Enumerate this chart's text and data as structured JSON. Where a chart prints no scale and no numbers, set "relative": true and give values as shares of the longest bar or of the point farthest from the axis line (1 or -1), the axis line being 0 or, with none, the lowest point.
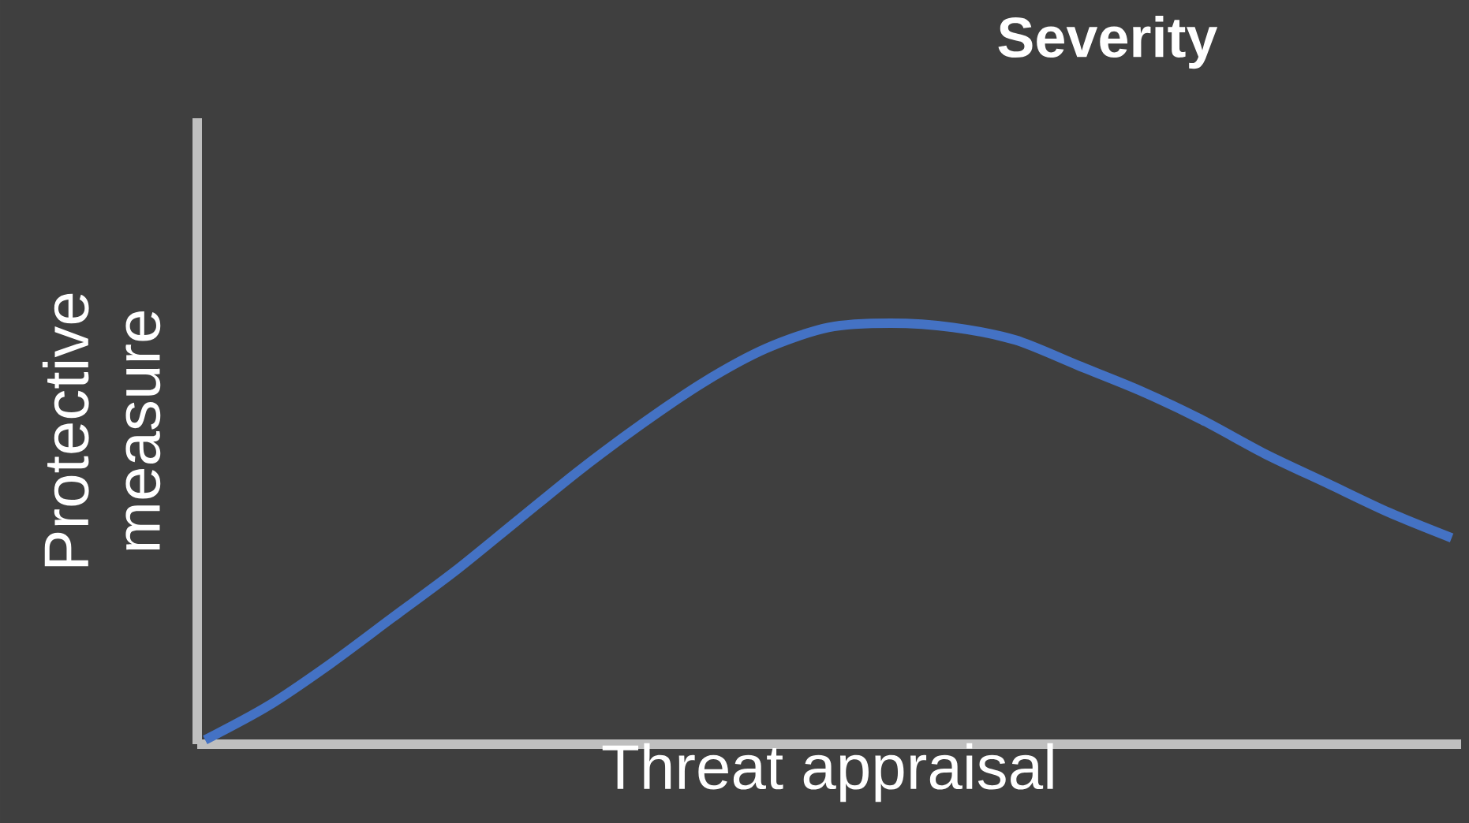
{
  "chart_data": {
    "type": "line",
    "title": "Severity",
    "xlabel": "Threat appraisal",
    "ylabel": "Protective measure",
    "relative": true,
    "color": "#4472c4",
    "categories": [
      null,
      null,
      null,
      null,
      null,
      null,
      null,
      null,
      null,
      null,
      null,
      null,
      null,
      null,
      null,
      null,
      null,
      null,
      null,
      null,
      null
    ],
    "values": [
      0.01,
      0.09,
      0.19,
      0.3,
      0.41,
      0.53,
      0.65,
      0.76,
      0.86,
      0.94,
      0.99,
      1.0,
      0.99,
      0.96,
      0.9,
      0.84,
      0.77,
      0.69,
      0.62,
      0.55,
      0.49
    ]
  }
}
